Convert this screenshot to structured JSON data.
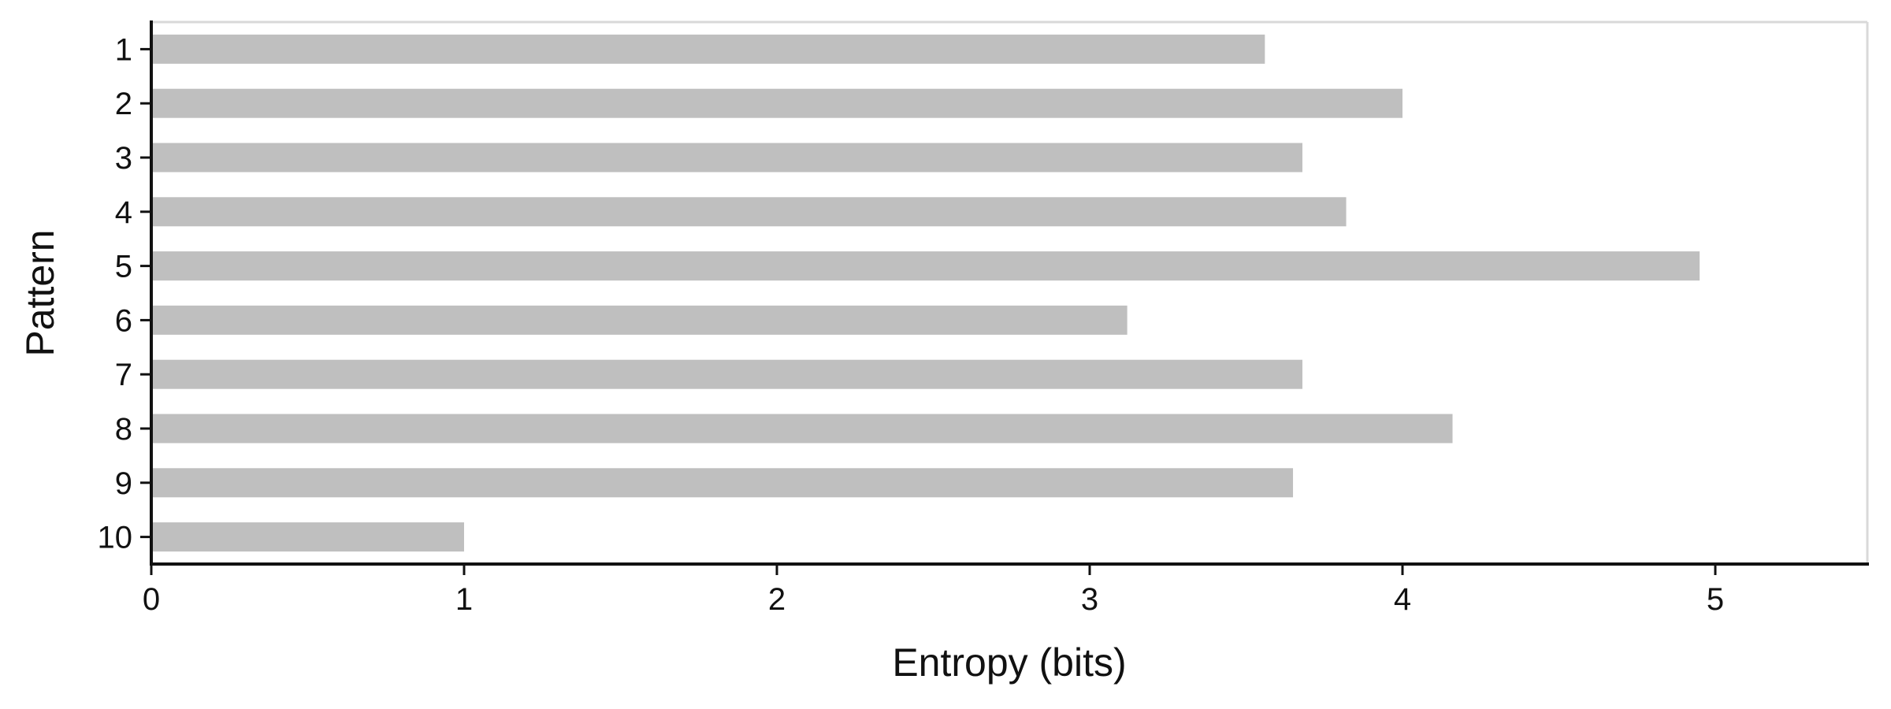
{
  "chart_data": {
    "type": "bar",
    "orientation": "horizontal",
    "categories": [
      "1",
      "2",
      "3",
      "4",
      "5",
      "6",
      "7",
      "8",
      "9",
      "10"
    ],
    "values": [
      3.56,
      4.0,
      3.68,
      3.82,
      4.95,
      3.12,
      3.68,
      4.16,
      3.65,
      1.0
    ],
    "xlabel": "Entropy (bits)",
    "ylabel": "Pattern",
    "xlim": [
      0,
      5.5
    ],
    "xticks": [
      "0",
      "1",
      "2",
      "3",
      "4",
      "5"
    ],
    "grid": false,
    "bar_color": "#bfbfbf",
    "axis_color": "#111111",
    "frame_color": "#d9d9d9"
  }
}
